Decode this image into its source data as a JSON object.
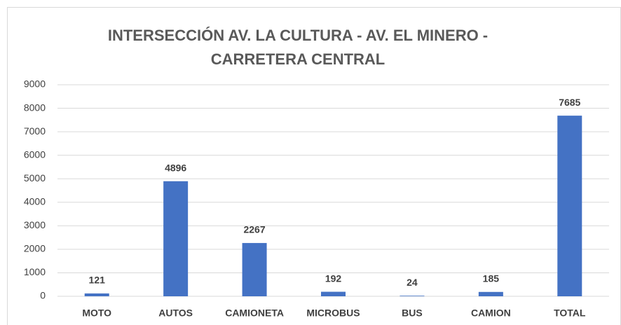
{
  "chart_data": {
    "type": "bar",
    "title": [
      "INTERSECCIÓN AV. LA CULTURA - AV. EL MINERO -",
      "CARRETERA CENTRAL"
    ],
    "categories": [
      "MOTO",
      "AUTOS",
      "CAMIONETA",
      "MICROBUS",
      "BUS",
      "CAMION",
      "TOTAL"
    ],
    "values": [
      121,
      4896,
      2267,
      192,
      24,
      185,
      7685
    ],
    "color": "#4472c4",
    "ylim": [
      0,
      9000
    ],
    "yticks": [
      0,
      1000,
      2000,
      3000,
      4000,
      5000,
      6000,
      7000,
      8000,
      9000
    ],
    "grid": true
  }
}
